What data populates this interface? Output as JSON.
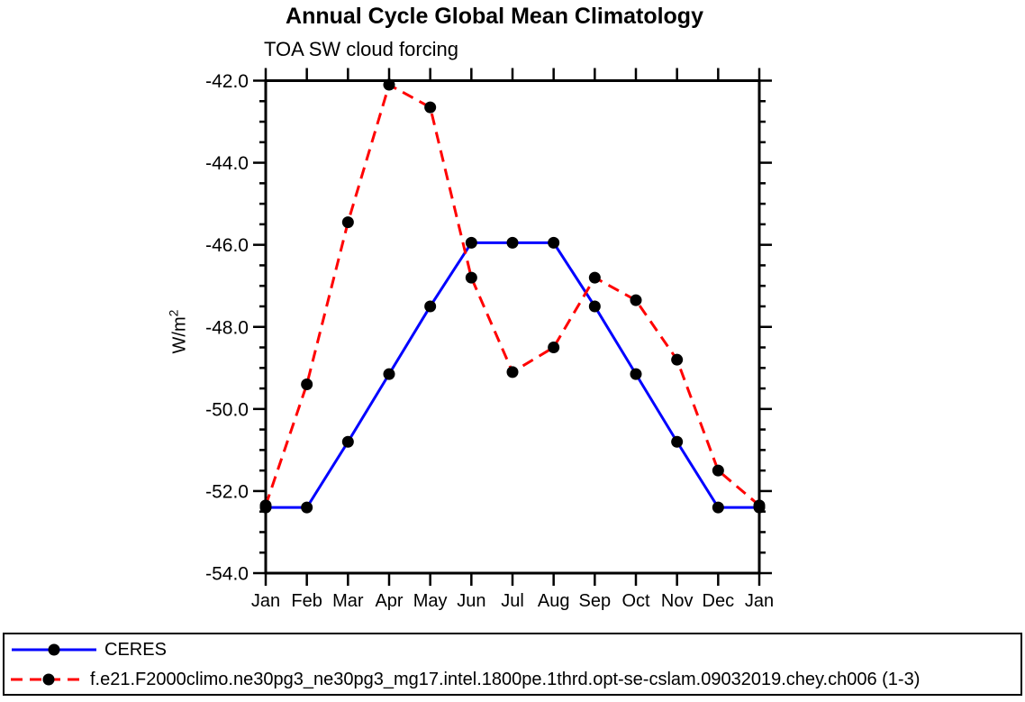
{
  "chart_data": {
    "type": "line",
    "title": "Annual Cycle Global Mean Climatology",
    "subtitle": "TOA SW cloud forcing",
    "ylabel_base": "W/m",
    "ylabel_exp": "2",
    "categories": [
      "Jan",
      "Feb",
      "Mar",
      "Apr",
      "May",
      "Jun",
      "Jul",
      "Aug",
      "Sep",
      "Oct",
      "Nov",
      "Dec",
      "Jan"
    ],
    "ylim": [
      -54,
      -42
    ],
    "y_axis": {
      "tick_values": [
        -42,
        -44,
        -46,
        -48,
        -50,
        -52,
        -54
      ],
      "tick_labels": [
        "-42.0",
        "-44.0",
        "-46.0",
        "-48.0",
        "-50.0",
        "-52.0",
        "-54.0"
      ],
      "minor_step": 0.5,
      "grid": false
    },
    "marker_color": "#000000",
    "axis_color": "#000000",
    "series": [
      {
        "name": "CERES",
        "color": "#0000ff",
        "line_style": "solid",
        "values": [
          -52.4,
          -52.4,
          -50.8,
          -49.15,
          -47.5,
          -45.95,
          -45.95,
          -45.95,
          -47.5,
          -49.15,
          -50.8,
          -52.4,
          -52.4
        ]
      },
      {
        "name": "f.e21.F2000climo.ne30pg3_ne30pg3_mg17.intel.1800pe.1thrd.opt-se-cslam.09032019.chey.ch006 (1-3)",
        "color": "#ff0000",
        "line_style": "dashed",
        "values": [
          -52.35,
          -49.4,
          -45.45,
          -42.1,
          -42.65,
          -46.8,
          -49.1,
          -48.5,
          -46.8,
          -47.35,
          -48.8,
          -51.5,
          -52.35
        ]
      }
    ],
    "legend_position": "bottom"
  }
}
